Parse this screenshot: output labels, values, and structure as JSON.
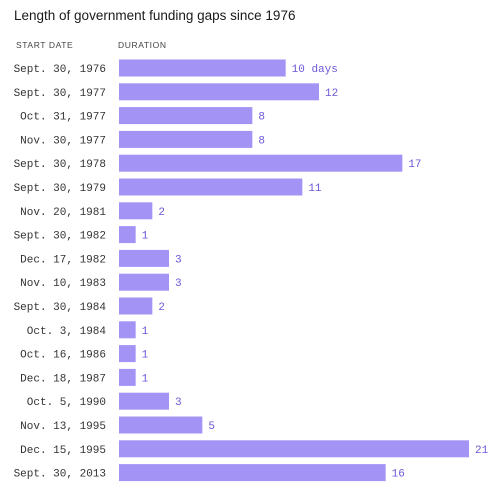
{
  "chart_data": {
    "type": "bar",
    "orientation": "horizontal",
    "title": "Length of government funding gaps since 1976",
    "category_header": "START DATE",
    "value_header": "DURATION",
    "value_unit_label": "days",
    "bar_color": "#a393f5",
    "label_color": "#6a58d8",
    "grid": false,
    "xlim": [
      0,
      21
    ],
    "categories": [
      "Sept. 30, 1976",
      "Sept. 30, 1977",
      "Oct. 31, 1977",
      "Nov. 30, 1977",
      "Sept. 30, 1978",
      "Sept. 30, 1979",
      "Nov. 20, 1981",
      "Sept. 30, 1982",
      "Dec. 17, 1982",
      "Nov. 10, 1983",
      "Sept. 30, 1984",
      "Oct. 3, 1984",
      "Oct. 16, 1986",
      "Dec. 18, 1987",
      "Oct. 5, 1990",
      "Nov. 13, 1995",
      "Dec. 15, 1995",
      "Sept. 30, 2013"
    ],
    "values": [
      10,
      12,
      8,
      8,
      17,
      11,
      2,
      1,
      3,
      3,
      2,
      1,
      1,
      1,
      3,
      5,
      21,
      16
    ]
  }
}
